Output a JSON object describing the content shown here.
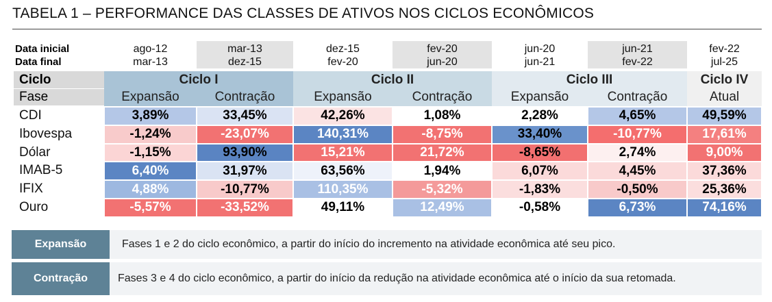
{
  "title": "TABELA 1 – PERFORMANCE DAS CLASSES DE ATIVOS NOS CICLOS ECONÔMICOS",
  "dates": {
    "labels": [
      "Data inicial",
      "Data final"
    ],
    "columns": [
      {
        "start": "ago-12",
        "end": "mar-13",
        "fill": "#ffffff"
      },
      {
        "start": "mar-13",
        "end": "dez-15",
        "fill": "#e3e3e3"
      },
      {
        "start": "dez-15",
        "end": "fev-20",
        "fill": "#ffffff"
      },
      {
        "start": "fev-20",
        "end": "jun-20",
        "fill": "#e3e3e3"
      },
      {
        "start": "jun-20",
        "end": "jun-21",
        "fill": "#ffffff"
      },
      {
        "start": "jun-21",
        "end": "fev-22",
        "fill": "#e3e3e3"
      },
      {
        "start": "fev-22",
        "end": "jul-25",
        "fill": "#ffffff"
      }
    ]
  },
  "cycles": {
    "label": "Ciclo",
    "items": [
      {
        "name": "Ciclo I",
        "span": 2,
        "fill": "#a9c3d6"
      },
      {
        "name": "Ciclo II",
        "span": 2,
        "fill": "#c9dae4"
      },
      {
        "name": "Ciclo III",
        "span": 2,
        "fill": "#e2eaf0"
      },
      {
        "name": "Ciclo IV",
        "span": 1,
        "fill": "#f0f0f0"
      }
    ]
  },
  "phases": {
    "label": "Fase",
    "items": [
      "Expansão",
      "Contração",
      "Expansão",
      "Contração",
      "Expansão",
      "Contração",
      "Atual"
    ]
  },
  "rows": [
    {
      "name": "CDI",
      "cells": [
        {
          "text": "3,89%",
          "fill": "#b4c7e7",
          "color": "#000"
        },
        {
          "text": "33,45%",
          "fill": "#dae3f3",
          "color": "#000"
        },
        {
          "text": "42,26%",
          "fill": "#fbe3e3",
          "color": "#000"
        },
        {
          "text": "1,08%",
          "fill": "#ffffff",
          "color": "#000"
        },
        {
          "text": "2,28%",
          "fill": "#ffffff",
          "color": "#000"
        },
        {
          "text": "4,65%",
          "fill": "#b4c7e7",
          "color": "#000"
        },
        {
          "text": "49,59%",
          "fill": "#b4c7e7",
          "color": "#000"
        }
      ]
    },
    {
      "name": "Ibovespa",
      "cells": [
        {
          "text": "-1,24%",
          "fill": "#f8cbcb",
          "color": "#000"
        },
        {
          "text": "-23,07%",
          "fill": "#f27272",
          "color": "#fff"
        },
        {
          "text": "140,31%",
          "fill": "#5b85c3",
          "color": "#fff"
        },
        {
          "text": "-8,75%",
          "fill": "#f27272",
          "color": "#fff"
        },
        {
          "text": "33,40%",
          "fill": "#6a92cb",
          "color": "#000"
        },
        {
          "text": "-10,77%",
          "fill": "#f46e6e",
          "color": "#fff"
        },
        {
          "text": "17,61%",
          "fill": "#f48080",
          "color": "#fff"
        }
      ]
    },
    {
      "name": "Dólar",
      "cells": [
        {
          "text": "-1,15%",
          "fill": "#fbd5d5",
          "color": "#000"
        },
        {
          "text": "93,90%",
          "fill": "#5a84c2",
          "color": "#000"
        },
        {
          "text": "15,21%",
          "fill": "#f27272",
          "color": "#fff"
        },
        {
          "text": "21,72%",
          "fill": "#f27272",
          "color": "#fff"
        },
        {
          "text": "-8,65%",
          "fill": "#f27070",
          "color": "#000"
        },
        {
          "text": "2,74%",
          "fill": "#fdf0f0",
          "color": "#000"
        },
        {
          "text": "9,00%",
          "fill": "#f27272",
          "color": "#fff"
        }
      ]
    },
    {
      "name": "IMAB-5",
      "cells": [
        {
          "text": "6,40%",
          "fill": "#5b85c3",
          "color": "#fff"
        },
        {
          "text": "31,97%",
          "fill": "#dae3f3",
          "color": "#000"
        },
        {
          "text": "63,56%",
          "fill": "#eef2fa",
          "color": "#000"
        },
        {
          "text": "1,94%",
          "fill": "#ffffff",
          "color": "#000"
        },
        {
          "text": "6,07%",
          "fill": "#fbdada",
          "color": "#000"
        },
        {
          "text": "4,45%",
          "fill": "#fbdada",
          "color": "#000"
        },
        {
          "text": "37,36%",
          "fill": "#fbdada",
          "color": "#000"
        }
      ]
    },
    {
      "name": "IFIX",
      "cells": [
        {
          "text": "4,88%",
          "fill": "#9db8e0",
          "color": "#fff"
        },
        {
          "text": "-10,77%",
          "fill": "#f8caca",
          "color": "#000"
        },
        {
          "text": "110,35%",
          "fill": "#a9c0e4",
          "color": "#fff"
        },
        {
          "text": "-5,32%",
          "fill": "#f49a9a",
          "color": "#fff"
        },
        {
          "text": "-1,83%",
          "fill": "#fbdede",
          "color": "#000"
        },
        {
          "text": "-0,50%",
          "fill": "#f8caca",
          "color": "#000"
        },
        {
          "text": "25,36%",
          "fill": "#fbdede",
          "color": "#000"
        }
      ]
    },
    {
      "name": "Ouro",
      "cells": [
        {
          "text": "-5,57%",
          "fill": "#f27272",
          "color": "#fff"
        },
        {
          "text": "-33,52%",
          "fill": "#f27272",
          "color": "#fff"
        },
        {
          "text": "49,11%",
          "fill": "#ffffff",
          "color": "#000"
        },
        {
          "text": "12,49%",
          "fill": "#a9c0e4",
          "color": "#fff"
        },
        {
          "text": "-0,58%",
          "fill": "#ffffff",
          "color": "#000"
        },
        {
          "text": "6,73%",
          "fill": "#5b85c3",
          "color": "#fff"
        },
        {
          "text": "74,16%",
          "fill": "#5b85c3",
          "color": "#fff"
        }
      ]
    }
  ],
  "legend": [
    {
      "term": "Expansão",
      "text": "Fases 1 e 2 do ciclo econômico, a partir do início do incremento na atividade econômica até seu pico."
    },
    {
      "term": "Contração",
      "text": "Fases 3 e 4 do ciclo econômico, a partir do início da redução na atividade econômica até o início da sua retomada."
    }
  ]
}
